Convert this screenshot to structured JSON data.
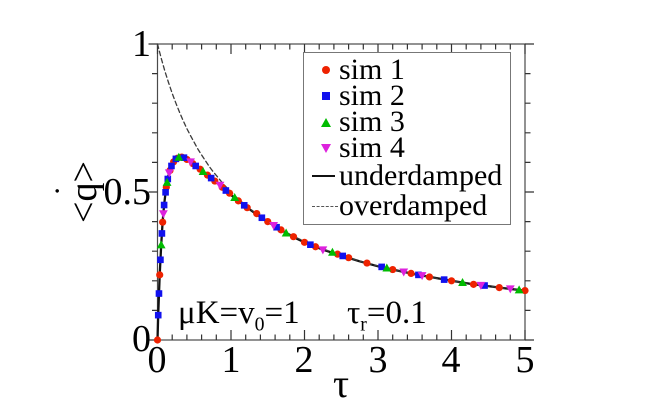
{
  "figure": {
    "type": "scientific-plot",
    "background": "#ffffff"
  },
  "axes": {
    "x": {
      "label": "τ",
      "tick_labels": [
        "0",
        "1",
        "2",
        "3",
        "4",
        "5"
      ]
    },
    "y": {
      "label": "<q̇>",
      "label_parts": {
        "left": "<",
        "var": "q",
        "dot": "˙",
        "right": ">"
      },
      "tick_labels": [
        "0",
        "0.5",
        "1"
      ]
    }
  },
  "annotations": {
    "mu": {
      "pre": "μK=v",
      "sub": "0",
      "post": "=1",
      "text": "μK=v₀=1"
    },
    "tau": {
      "pre": "τ",
      "sub": "r",
      "post": "=0.1",
      "text": "τᵣ=0.1"
    }
  },
  "legend": {
    "entries": [
      {
        "label": "sim 1",
        "marker": "circle",
        "color": "#ee2200"
      },
      {
        "label": "sim 2",
        "marker": "square",
        "color": "#1111ee"
      },
      {
        "label": "sim 3",
        "marker": "triangle-up",
        "color": "#00bb00"
      },
      {
        "label": "sim 4",
        "marker": "triangle-down",
        "color": "#dd22dd"
      },
      {
        "label": "underdamped",
        "marker": "line-solid",
        "color": "#111111"
      },
      {
        "label": "overdamped",
        "marker": "line-dashed",
        "color": "#555555"
      }
    ]
  },
  "chart_data": {
    "type": "line",
    "title": "",
    "xlabel": "τ",
    "ylabel": "<q̇>",
    "xlim": [
      0,
      5
    ],
    "ylim": [
      0,
      1
    ],
    "x_major_ticks": [
      0,
      1,
      2,
      3,
      4,
      5
    ],
    "x_minor_step": 0.2,
    "y_major_ticks": [
      0,
      0.5,
      1
    ],
    "y_minor_step": 0.1,
    "grid": false,
    "legend_position": "upper-right-inside",
    "annotations": [
      "μK=v₀=1",
      "τᵣ=0.1"
    ],
    "series": [
      {
        "name": "sim 1",
        "type": "scatter",
        "marker": "circle",
        "color": "#ee2200",
        "x": [
          0,
          0.03,
          0.07,
          0.12,
          0.17,
          0.22,
          0.27,
          0.33,
          0.4,
          0.48,
          0.58,
          0.68,
          0.78,
          0.88,
          0.98,
          1.1,
          1.22,
          1.35,
          1.5,
          1.68,
          1.85,
          2.0,
          2.15,
          2.45,
          2.6,
          2.85,
          3.2,
          3.45,
          3.7,
          4.0,
          4.3,
          4.65,
          5.0
        ],
        "y": [
          0,
          0.22,
          0.398,
          0.516,
          0.573,
          0.602,
          0.614,
          0.618,
          0.61,
          0.596,
          0.577,
          0.557,
          0.537,
          0.516,
          0.496,
          0.47,
          0.447,
          0.427,
          0.4,
          0.372,
          0.349,
          0.33,
          0.315,
          0.29,
          0.278,
          0.26,
          0.238,
          0.225,
          0.213,
          0.2,
          0.188,
          0.177,
          0.167
        ]
      },
      {
        "name": "sim 2",
        "type": "scatter",
        "marker": "square",
        "color": "#1111ee",
        "x": [
          0.01,
          0.02,
          0.04,
          0.06,
          0.09,
          0.11,
          0.14,
          0.19,
          0.25,
          0.36,
          0.52,
          0.73,
          0.93,
          1.18,
          1.42,
          1.62,
          2.08,
          2.52,
          3.05,
          3.55,
          3.9,
          4.45
        ],
        "y": [
          0.084,
          0.157,
          0.271,
          0.36,
          0.456,
          0.499,
          0.544,
          0.588,
          0.612,
          0.616,
          0.588,
          0.547,
          0.505,
          0.455,
          0.413,
          0.381,
          0.322,
          0.284,
          0.247,
          0.22,
          0.204,
          0.184
        ]
      },
      {
        "name": "sim 3",
        "type": "scatter",
        "marker": "triangle-up",
        "color": "#00bb00",
        "x": [
          0.05,
          0.13,
          0.29,
          0.62,
          1.05,
          1.75,
          2.38,
          3.12,
          4.15,
          4.92
        ],
        "y": [
          0.321,
          0.532,
          0.617,
          0.569,
          0.481,
          0.361,
          0.296,
          0.243,
          0.194,
          0.169
        ]
      },
      {
        "name": "sim 4",
        "type": "scatter",
        "marker": "triangle-down",
        "color": "#dd22dd",
        "x": [
          0.08,
          0.16,
          0.45,
          0.85,
          1.58,
          2.25,
          3.35,
          3.6,
          4.4,
          4.8
        ],
        "y": [
          0.427,
          0.565,
          0.602,
          0.523,
          0.387,
          0.305,
          0.23,
          0.218,
          0.185,
          0.173
        ]
      },
      {
        "name": "underdamped",
        "type": "line",
        "style": "solid",
        "color": "#111111",
        "x": [
          0,
          0.01,
          0.02,
          0.03,
          0.05,
          0.07,
          0.09,
          0.11,
          0.13,
          0.15,
          0.18,
          0.21,
          0.25,
          0.3,
          0.35,
          0.4,
          0.45,
          0.5,
          0.6,
          0.7,
          0.8,
          0.9,
          1.0,
          1.1,
          1.2,
          1.3,
          1.4,
          1.5,
          1.6,
          1.7,
          1.8,
          1.9,
          2.0,
          2.25,
          2.5,
          2.75,
          3.0,
          3.25,
          3.5,
          3.75,
          4.0,
          4.25,
          4.5,
          4.75,
          5.0
        ],
        "y": [
          0,
          0.084,
          0.157,
          0.22,
          0.321,
          0.398,
          0.456,
          0.499,
          0.532,
          0.556,
          0.582,
          0.599,
          0.612,
          0.618,
          0.617,
          0.61,
          0.602,
          0.592,
          0.573,
          0.553,
          0.533,
          0.512,
          0.49,
          0.47,
          0.451,
          0.433,
          0.416,
          0.4,
          0.384,
          0.369,
          0.355,
          0.342,
          0.33,
          0.305,
          0.285,
          0.266,
          0.249,
          0.235,
          0.222,
          0.211,
          0.2,
          0.19,
          0.182,
          0.174,
          0.167
        ]
      },
      {
        "name": "overdamped",
        "type": "line",
        "style": "dashed",
        "color": "#3c3c3c",
        "x": [
          0,
          0.05,
          0.1,
          0.15,
          0.2,
          0.25,
          0.3,
          0.35,
          0.4,
          0.45,
          0.5,
          0.55,
          0.6,
          0.65,
          0.7,
          0.75,
          0.8,
          0.85,
          0.9,
          0.95,
          1.0,
          1.1,
          1.2,
          1.3,
          1.4,
          1.5,
          1.6,
          1.7,
          1.8,
          1.9,
          2.0,
          2.2,
          2.4,
          2.6,
          2.8,
          3.0,
          3.2,
          3.4,
          3.6,
          3.8,
          4.0,
          4.2,
          4.4,
          4.6,
          4.8,
          5.0
        ],
        "y": [
          1.0,
          0.952,
          0.909,
          0.87,
          0.833,
          0.8,
          0.769,
          0.741,
          0.714,
          0.69,
          0.667,
          0.645,
          0.625,
          0.606,
          0.588,
          0.571,
          0.556,
          0.541,
          0.526,
          0.513,
          0.5,
          0.476,
          0.455,
          0.435,
          0.417,
          0.4,
          0.385,
          0.37,
          0.357,
          0.345,
          0.333,
          0.313,
          0.294,
          0.278,
          0.263,
          0.25,
          0.238,
          0.227,
          0.217,
          0.208,
          0.2,
          0.192,
          0.185,
          0.179,
          0.172,
          0.167
        ]
      }
    ]
  }
}
